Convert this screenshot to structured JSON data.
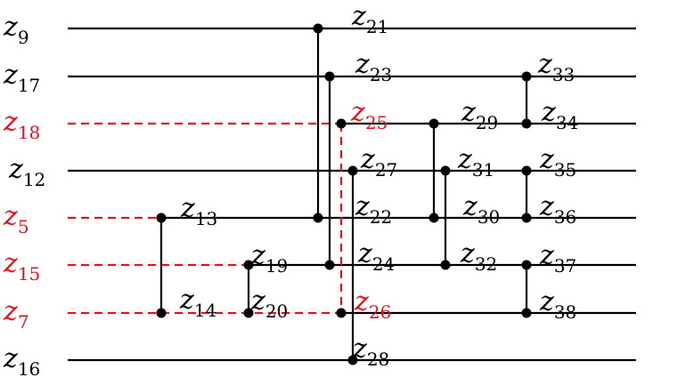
{
  "colors": {
    "black": "#000000",
    "red": "#e8101a"
  },
  "wires": [
    {
      "label": {
        "v": "z",
        "s": "9"
      },
      "color": "black"
    },
    {
      "label": {
        "v": "z",
        "s": "17"
      },
      "color": "black"
    },
    {
      "label": {
        "v": "z",
        "s": "18"
      },
      "color": "red"
    },
    {
      "label": {
        "v": "z",
        "s": "12"
      },
      "color": "black"
    },
    {
      "label": {
        "v": "z",
        "s": "5"
      },
      "color": "red"
    },
    {
      "label": {
        "v": "z",
        "s": "15"
      },
      "color": "red"
    },
    {
      "label": {
        "v": "z",
        "s": "7"
      },
      "color": "red"
    },
    {
      "label": {
        "v": "z",
        "s": "16"
      },
      "color": "black"
    }
  ],
  "comparators": [
    {
      "label_top": {
        "v": "z",
        "s": "13"
      },
      "label_bottom": {
        "v": "z",
        "s": "14"
      },
      "wires": [
        4,
        6
      ]
    },
    {
      "label_top": {
        "v": "z",
        "s": "19"
      },
      "label_bottom": {
        "v": "z",
        "s": "20"
      },
      "wires": [
        5,
        6
      ]
    },
    {
      "label_top": {
        "v": "z",
        "s": "21"
      },
      "label_bottom": {
        "v": "z",
        "s": "22"
      },
      "wires": [
        0,
        4
      ]
    },
    {
      "label_top": {
        "v": "z",
        "s": "23"
      },
      "label_bottom": {
        "v": "z",
        "s": "24"
      },
      "wires": [
        1,
        5
      ]
    },
    {
      "label_top": {
        "v": "z",
        "s": "25"
      },
      "label_bottom": {
        "v": "z",
        "s": "26"
      },
      "wires": [
        2,
        6
      ],
      "color": "red"
    },
    {
      "label_top": {
        "v": "z",
        "s": "27"
      },
      "label_bottom": {
        "v": "z",
        "s": "28"
      },
      "wires": [
        3,
        7
      ]
    },
    {
      "label_top": {
        "v": "z",
        "s": "29"
      },
      "label_bottom": {
        "v": "z",
        "s": "30"
      },
      "wires": [
        2,
        4
      ]
    },
    {
      "label_top": {
        "v": "z",
        "s": "31"
      },
      "label_bottom": {
        "v": "z",
        "s": "32"
      },
      "wires": [
        3,
        5
      ]
    },
    {
      "label_top": {
        "v": "z",
        "s": "33"
      },
      "label_bottom": {
        "v": "z",
        "s": "34"
      },
      "wires": [
        1,
        2
      ]
    },
    {
      "label_top": {
        "v": "z",
        "s": "35"
      },
      "label_bottom": {
        "v": "z",
        "s": "36"
      },
      "wires": [
        3,
        4
      ]
    },
    {
      "label_top": {
        "v": "z",
        "s": "37"
      },
      "label_bottom": {
        "v": "z",
        "s": "38"
      },
      "wires": [
        5,
        6
      ]
    }
  ]
}
